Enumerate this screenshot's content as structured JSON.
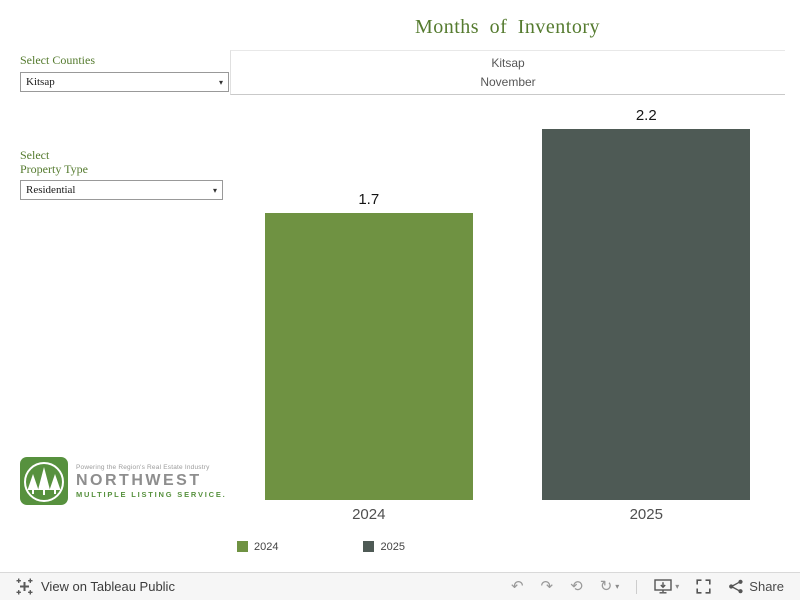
{
  "colors": {
    "brand_green": "#557b2f",
    "bar_2024": "#6f9242",
    "bar_2025": "#4e5a55",
    "logo_green": "#57913e"
  },
  "sidebar": {
    "counties_filter": {
      "label": "Select Counties",
      "value": "Kitsap"
    },
    "property_filter": {
      "label_line1": "Select",
      "label_line2": "Property Type",
      "value": "Residential"
    }
  },
  "logo": {
    "tagline": "Powering the Region's Real Estate Industry",
    "name": "NORTHWEST",
    "subname": "MULTIPLE LISTING SERVICE."
  },
  "chart_data": {
    "type": "bar",
    "title": "Months of Inventory",
    "subtitle": [
      "Kitsap",
      "November"
    ],
    "categories": [
      "2024",
      "2025"
    ],
    "values": [
      1.7,
      2.2
    ],
    "value_labels": [
      "1.7",
      "2.2"
    ],
    "bar_colors": [
      "#6f9242",
      "#4e5a55"
    ],
    "ylim": [
      0,
      2.4
    ],
    "grid": false,
    "legend": [
      "2024",
      "2025"
    ],
    "legend_position": "bottom-left"
  },
  "toolbar": {
    "view_label": "View on Tableau Public",
    "share_label": "Share"
  },
  "icons": {
    "caret_down": "▾",
    "undo": "↶",
    "redo": "↷",
    "revert": "⟲",
    "refresh": "↻"
  }
}
